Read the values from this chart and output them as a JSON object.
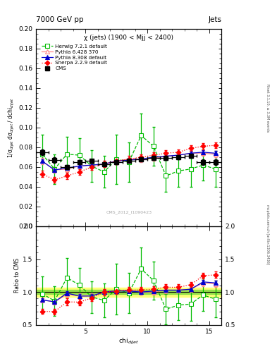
{
  "title_top": "7000 GeV pp",
  "title_right": "Jets",
  "plot_title": "χ (jets) (1900 < Mjj < 2400)",
  "watermark": "CMS_2012_I1090423",
  "right_label_top": "Rivet 3.1.10, ≥ 3.3M events",
  "right_label_bot": "mcplots.cern.ch [arXiv:1306.3436]",
  "xlabel": "chi$_{dijet}$",
  "ylabel": "1/σ$_{dijet}$ dσ$_{dijet}$ / dchi$_{dijet}$",
  "ylabel_ratio": "Ratio to CMS",
  "ylim_main": [
    0.0,
    0.2
  ],
  "ylim_ratio": [
    0.5,
    2.0
  ],
  "yticks_main": [
    0.0,
    0.02,
    0.04,
    0.06,
    0.08,
    0.1,
    0.12,
    0.14,
    0.16,
    0.18,
    0.2
  ],
  "yticks_ratio": [
    0.5,
    1.0,
    1.5,
    2.0
  ],
  "xlim": [
    1,
    16
  ],
  "xticks": [
    5,
    10,
    15
  ],
  "cms_x": [
    1.5,
    2.5,
    3.5,
    4.5,
    5.5,
    6.5,
    7.5,
    8.5,
    9.5,
    10.5,
    11.5,
    12.5,
    13.5,
    14.5,
    15.5
  ],
  "cms_y": [
    0.075,
    0.067,
    0.06,
    0.065,
    0.066,
    0.063,
    0.065,
    0.066,
    0.068,
    0.069,
    0.069,
    0.07,
    0.071,
    0.065,
    0.065
  ],
  "cms_yerr": [
    0.003,
    0.003,
    0.002,
    0.002,
    0.002,
    0.002,
    0.002,
    0.002,
    0.002,
    0.002,
    0.002,
    0.002,
    0.002,
    0.003,
    0.003
  ],
  "cms_xerr": [
    0.5,
    0.5,
    0.5,
    0.5,
    0.5,
    0.5,
    0.5,
    0.5,
    0.5,
    0.5,
    0.5,
    0.5,
    0.5,
    0.5,
    0.5
  ],
  "herwig_x": [
    1.5,
    2.5,
    3.5,
    4.5,
    5.5,
    6.5,
    7.5,
    8.5,
    9.5,
    10.5,
    11.5,
    12.5,
    13.5,
    14.5,
    15.5
  ],
  "herwig_y": [
    0.073,
    0.058,
    0.073,
    0.072,
    0.061,
    0.055,
    0.068,
    0.065,
    0.092,
    0.081,
    0.051,
    0.056,
    0.058,
    0.062,
    0.058
  ],
  "herwig_yerr": [
    0.02,
    0.015,
    0.018,
    0.017,
    0.016,
    0.016,
    0.025,
    0.02,
    0.022,
    0.02,
    0.016,
    0.016,
    0.018,
    0.016,
    0.018
  ],
  "pythia6_x": [
    1.5,
    2.5,
    3.5,
    4.5,
    5.5,
    6.5,
    7.5,
    8.5,
    9.5,
    10.5,
    11.5,
    12.5,
    13.5,
    14.5,
    15.5
  ],
  "pythia6_y": [
    0.066,
    0.057,
    0.058,
    0.061,
    0.062,
    0.063,
    0.066,
    0.068,
    0.068,
    0.069,
    0.071,
    0.072,
    0.074,
    0.074,
    0.073
  ],
  "pythia6_yerr": [
    0.003,
    0.003,
    0.003,
    0.003,
    0.003,
    0.003,
    0.003,
    0.003,
    0.003,
    0.003,
    0.003,
    0.003,
    0.003,
    0.003,
    0.003
  ],
  "pythia8_x": [
    1.5,
    2.5,
    3.5,
    4.5,
    5.5,
    6.5,
    7.5,
    8.5,
    9.5,
    10.5,
    11.5,
    12.5,
    13.5,
    14.5,
    15.5
  ],
  "pythia8_y": [
    0.066,
    0.057,
    0.059,
    0.061,
    0.062,
    0.063,
    0.066,
    0.067,
    0.068,
    0.07,
    0.071,
    0.072,
    0.074,
    0.075,
    0.074
  ],
  "pythia8_yerr": [
    0.002,
    0.002,
    0.002,
    0.002,
    0.002,
    0.002,
    0.002,
    0.002,
    0.002,
    0.002,
    0.002,
    0.002,
    0.002,
    0.002,
    0.002
  ],
  "sherpa_x": [
    1.5,
    2.5,
    3.5,
    4.5,
    5.5,
    6.5,
    7.5,
    8.5,
    9.5,
    10.5,
    11.5,
    12.5,
    13.5,
    14.5,
    15.5
  ],
  "sherpa_y": [
    0.053,
    0.047,
    0.051,
    0.055,
    0.06,
    0.063,
    0.066,
    0.068,
    0.07,
    0.072,
    0.074,
    0.075,
    0.079,
    0.081,
    0.082
  ],
  "sherpa_yerr": [
    0.003,
    0.003,
    0.003,
    0.003,
    0.003,
    0.003,
    0.003,
    0.003,
    0.003,
    0.003,
    0.003,
    0.003,
    0.003,
    0.003,
    0.003
  ],
  "cms_band_inner_lo": 0.97,
  "cms_band_inner_hi": 1.03,
  "cms_band_outer_lo": 0.93,
  "cms_band_outer_hi": 1.07,
  "color_cms": "#000000",
  "color_herwig": "#00bb00",
  "color_pythia6": "#ff8888",
  "color_pythia8": "#0000cc",
  "color_sherpa": "#ff0000",
  "legend_labels": [
    "CMS",
    "Herwig 7.2.1 default",
    "Pythia 6.428 370",
    "Pythia 8.308 default",
    "Sherpa 2.2.9 default"
  ],
  "bg_color": "#ffffff"
}
